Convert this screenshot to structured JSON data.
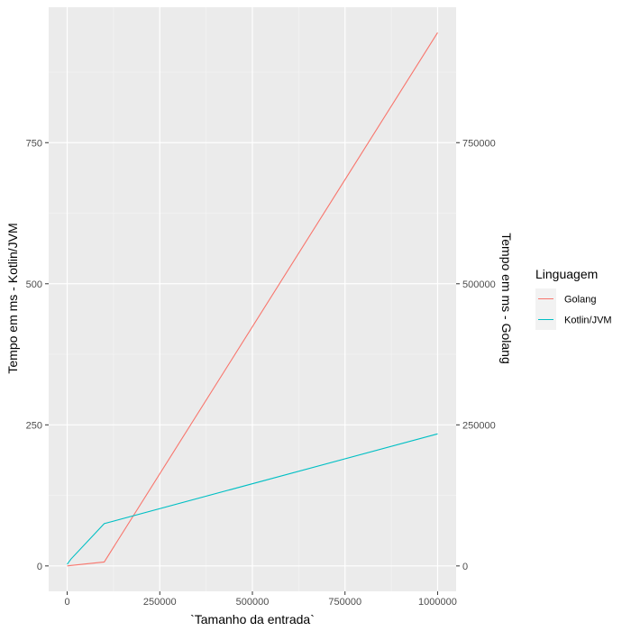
{
  "chart_data": {
    "type": "line",
    "x": [
      0,
      10000,
      100000,
      1000000
    ],
    "xlabel": "`Tamanho da entrada`",
    "ylabel_left": "Tempo em ms - Kotlin/JVM",
    "ylabel_right": "Tempo em ms - Golang",
    "xlim": [
      -50000,
      1050000
    ],
    "ylim_left": [
      -45,
      990
    ],
    "ylim_right": [
      -45000,
      990000
    ],
    "x_ticks": [
      0,
      250000,
      500000,
      750000,
      1000000
    ],
    "x_tick_labels": [
      "0",
      "250000",
      "500000",
      "750000",
      "1000000"
    ],
    "y_left_ticks": [
      0,
      250,
      500,
      750
    ],
    "y_left_tick_labels": [
      "0",
      "250",
      "500",
      "750"
    ],
    "y_right_ticks": [
      0,
      250000,
      500000,
      750000
    ],
    "y_right_tick_labels": [
      "0",
      "250000",
      "500000",
      "750000"
    ],
    "grid": true,
    "legend": {
      "title": "Linguagem",
      "position": "right"
    },
    "series": [
      {
        "name": "Golang",
        "axis": "right",
        "color": "#F8766D",
        "values": [
          0,
          800,
          7000,
          945000
        ]
      },
      {
        "name": "Kotlin/JVM",
        "axis": "left",
        "color": "#00BFC4",
        "values": [
          3,
          12,
          75,
          234
        ]
      }
    ]
  }
}
